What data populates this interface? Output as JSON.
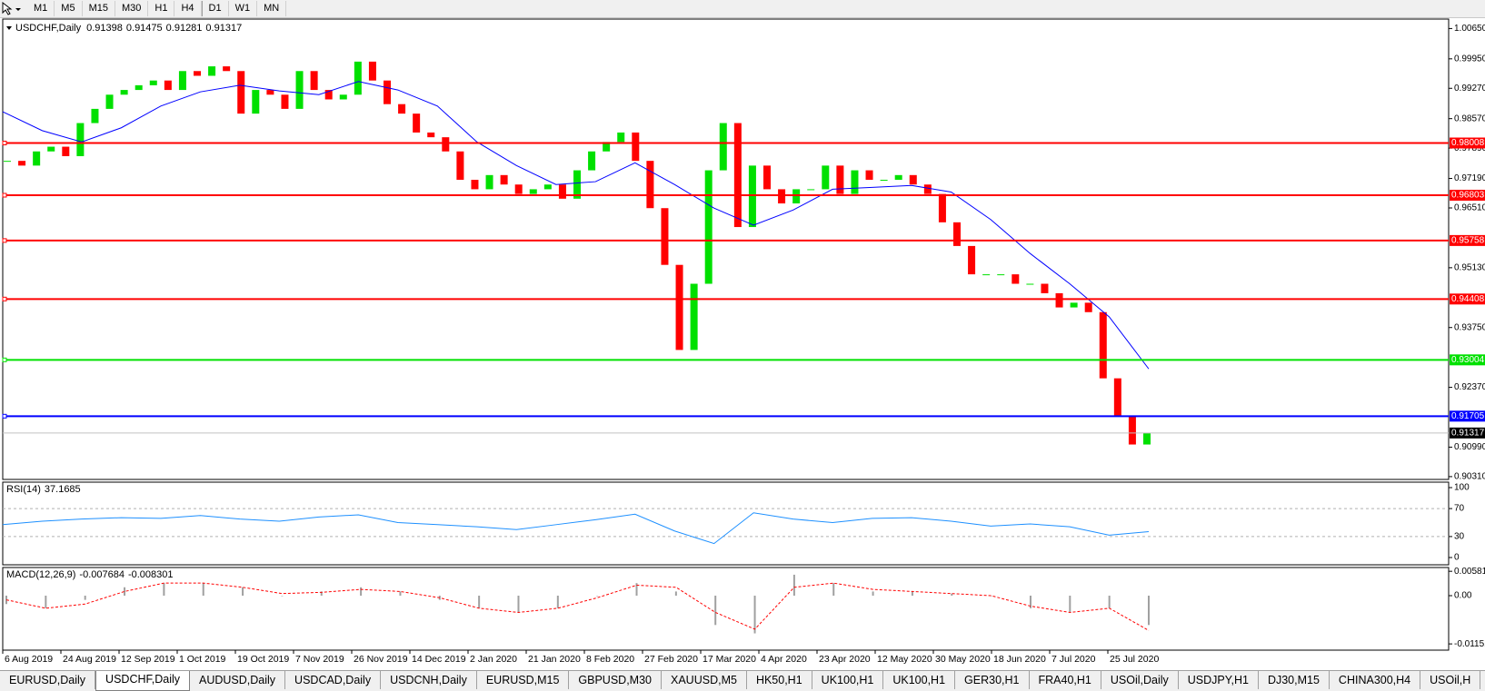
{
  "toolbar": {
    "timeframes": [
      "M1",
      "M5",
      "M15",
      "M30",
      "H1",
      "H4",
      "D1",
      "W1",
      "MN"
    ]
  },
  "chart": {
    "symbol": "USDCHF,Daily",
    "ohlc": [
      0.91398,
      0.91475,
      0.91281,
      0.91317
    ],
    "ylim": [
      0.90245,
      1.00868
    ],
    "yticks": [
      {
        "value": 1.0065,
        "label": "1.00650"
      },
      {
        "value": 0.9995,
        "label": "0.99950"
      },
      {
        "value": 0.9927,
        "label": "0.99270"
      },
      {
        "value": 0.9857,
        "label": "0.98570"
      },
      {
        "value": 0.9789,
        "label": "0.97890"
      },
      {
        "value": 0.9719,
        "label": "0.97190"
      },
      {
        "value": 0.9651,
        "label": "0.96510"
      },
      {
        "value": 0.9513,
        "label": "0.95130"
      },
      {
        "value": 0.9375,
        "label": "0.93750"
      },
      {
        "value": 0.9237,
        "label": "0.92370"
      },
      {
        "value": 0.9099,
        "label": "0.90990"
      },
      {
        "value": 0.9031,
        "label": "0.90310"
      }
    ],
    "closes": [
      0.97596,
      0.97487,
      0.97814,
      0.97923,
      0.97705,
      0.98468,
      0.98796,
      0.99123,
      0.99232,
      0.99341,
      0.9945,
      0.99232,
      0.99668,
      0.99559,
      0.99777,
      0.99668,
      0.98686,
      0.99232,
      0.99123,
      0.98796,
      0.99668,
      0.99232,
      0.99014,
      0.99123,
      0.99886,
      0.9945,
      0.98905,
      0.98686,
      0.9825,
      0.98141,
      0.97814,
      0.97159,
      0.96941,
      0.97268,
      0.9705,
      0.96832,
      0.96941,
      0.9705,
      0.96723,
      0.97378,
      0.97814,
      0.98032,
      0.9825,
      0.97596,
      0.96505,
      0.95196,
      0.93233,
      0.9476,
      0.97378,
      0.98468,
      0.96069,
      0.97487,
      0.96941,
      0.96614,
      0.96941,
      0.96941,
      0.97487,
      0.96832,
      0.97378,
      0.97159,
      0.97159,
      0.97268,
      0.9705,
      0.96832,
      0.96178,
      0.95632,
      0.94978,
      0.94978,
      0.94978,
      0.9476,
      0.9476,
      0.94542,
      0.94214,
      0.94323,
      0.94105,
      0.92578,
      0.91706,
      0.91051,
      0.91317
    ],
    "up_color": "#00e000",
    "down_color": "#ff0000",
    "ma": [
      0.9873,
      0.98294,
      0.98032,
      0.98359,
      0.98861,
      0.99188,
      0.99341,
      0.9921,
      0.99123,
      0.99428,
      0.99232,
      0.98861,
      0.98032,
      0.97487,
      0.9705,
      0.97116,
      0.97552,
      0.9705,
      0.96505,
      0.96112,
      0.96461,
      0.96941,
      0.96985,
      0.97029,
      0.96876,
      0.96243,
      0.95458,
      0.9476,
      0.93996,
      0.92796
    ],
    "ma_color": "#0000ff",
    "levels": [
      {
        "value": 0.98008,
        "color": "#ff0000"
      },
      {
        "value": 0.96803,
        "color": "#ff0000"
      },
      {
        "value": 0.95758,
        "color": "#ff0000"
      },
      {
        "value": 0.94408,
        "color": "#ff0000"
      },
      {
        "value": 0.93004,
        "color": "#00e000"
      },
      {
        "value": 0.91705,
        "color": "#0000ff"
      }
    ],
    "current_price": 0.91317,
    "dates": [
      "6 Aug 2019",
      "24 Aug 2019",
      "12 Sep 2019",
      "1 Oct 2019",
      "19 Oct 2019",
      "7 Nov 2019",
      "26 Nov 2019",
      "14 Dec 2019",
      "2 Jan 2020",
      "21 Jan 2020",
      "8 Feb 2020",
      "27 Feb 2020",
      "17 Mar 2020",
      "4 Apr 2020",
      "23 Apr 2020",
      "12 May 2020",
      "30 May 2020",
      "18 Jun 2020",
      "7 Jul 2020",
      "25 Jul 2020"
    ]
  },
  "rsi": {
    "label": "RSI(14)",
    "value": 37.1685,
    "ylim": [
      0,
      100
    ],
    "yticks": [
      100,
      70,
      30,
      0
    ],
    "color": "#1e90ff",
    "values": [
      47,
      52,
      55,
      57,
      56,
      60,
      55,
      52,
      58,
      61,
      50,
      47,
      44,
      40,
      47,
      54,
      62,
      38,
      20,
      64,
      55,
      50,
      56,
      57,
      52,
      45,
      48,
      44,
      32,
      37
    ]
  },
  "macd": {
    "label": "MACD(12,26,9)",
    "macd_value": -0.007684,
    "signal_value": -0.008301,
    "ylim": [
      -0.013,
      0.00672
    ],
    "yticks": [
      0.005818,
      {
        "value": 0,
        "label": "0.00"
      },
      -0.01151
    ],
    "histogram": [
      -0.002,
      -0.003,
      -0.001,
      0.002,
      0.003,
      0.003,
      0.002,
      0.0,
      0.001,
      0.002,
      0.001,
      -0.001,
      -0.003,
      -0.004,
      -0.003,
      0.0,
      0.003,
      0.001,
      -0.007,
      -0.009,
      0.005,
      0.003,
      0.001,
      0.001,
      0.0005,
      0.0,
      -0.003,
      -0.004,
      -0.003,
      -0.007
    ],
    "signal": [
      -0.001,
      -0.003,
      -0.002,
      0.001,
      0.003,
      0.003,
      0.002,
      0.0005,
      0.0008,
      0.0015,
      0.001,
      -0.0005,
      -0.003,
      -0.004,
      -0.003,
      -0.0005,
      0.0025,
      0.002,
      -0.004,
      -0.008,
      0.002,
      0.003,
      0.0015,
      0.001,
      0.0005,
      0.0,
      -0.0025,
      -0.004,
      -0.003,
      -0.0083
    ],
    "histogram_color": "#a0a0a0",
    "signal_color": "#ff0000"
  },
  "tabs": {
    "items": [
      "EURUSD,Daily",
      "USDCHF,Daily",
      "AUDUSD,Daily",
      "USDCAD,Daily",
      "USDCNH,Daily",
      "EURUSD,M15",
      "GBPUSD,M30",
      "XAUUSD,M5",
      "HK50,H1",
      "UK100,H1",
      "UK100,H1",
      "GER30,H1",
      "FRA40,H1",
      "USOil,Daily",
      "USDJPY,H1",
      "DJ30,M15",
      "CHINA300,H4",
      "USOil,H"
    ],
    "active": 1
  }
}
